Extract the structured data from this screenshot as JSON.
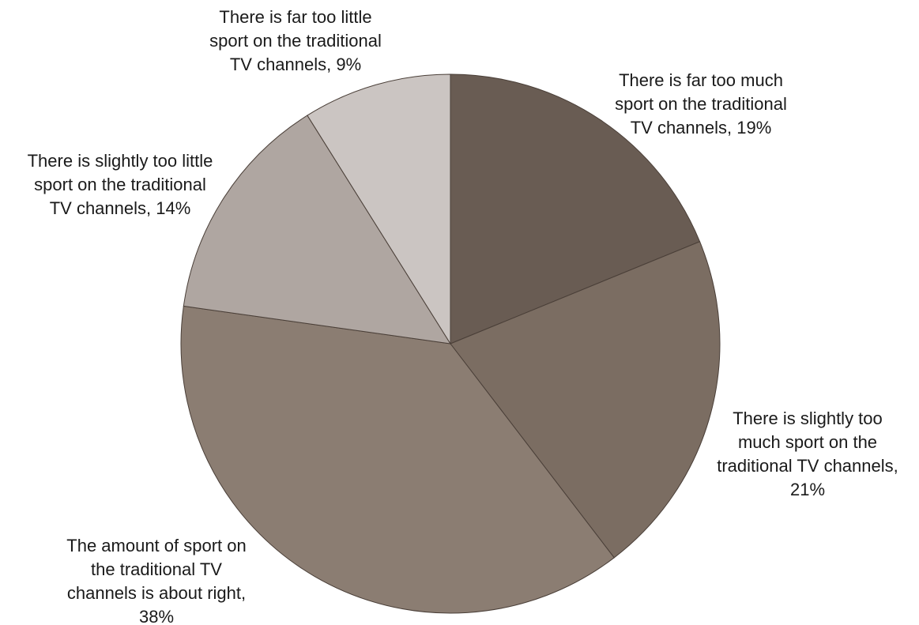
{
  "chart_data": {
    "type": "pie",
    "title": "",
    "start_angle_deg": 0,
    "direction": "clockwise",
    "legend": "none",
    "slices": [
      {
        "label_lines": [
          "There is far too much",
          "sport on the traditional",
          "TV channels, 19%"
        ],
        "category": "There is far too much sport on the traditional TV channels",
        "value": 19,
        "color": "#695c53"
      },
      {
        "label_lines": [
          "There is slightly too",
          "much sport on the",
          "traditional TV channels,",
          "21%"
        ],
        "category": "There is slightly too much sport on the traditional TV channels",
        "value": 21,
        "color": "#7b6d62"
      },
      {
        "label_lines": [
          "The amount of sport on",
          "the traditional TV",
          "channels is about right,",
          "38%"
        ],
        "category": "The amount of sport on the traditional TV channels is about right",
        "value": 38,
        "color": "#8b7d72"
      },
      {
        "label_lines": [
          "There is slightly too little",
          "sport on the traditional",
          "TV channels, 14%"
        ],
        "category": "There is slightly too little sport on the traditional TV channels",
        "value": 14,
        "color": "#afa6a1"
      },
      {
        "label_lines": [
          "There is far too little",
          "sport on the traditional",
          "TV channels, 9%"
        ],
        "category": "There is far too little sport on the traditional TV channels",
        "value": 9,
        "color": "#cbc5c2"
      }
    ]
  }
}
